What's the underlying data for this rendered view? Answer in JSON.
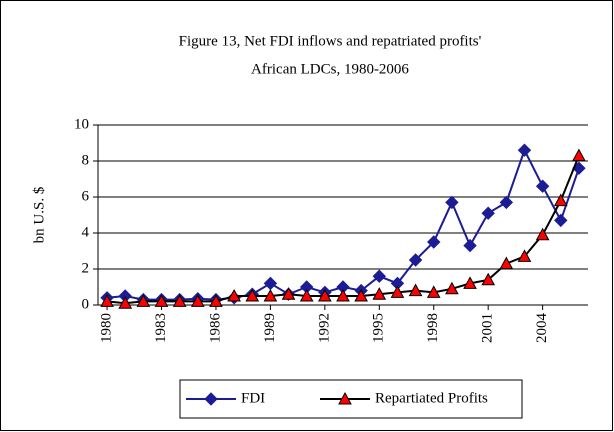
{
  "chart_data": {
    "type": "line",
    "title": [
      "Figure 13, Net FDI inflows and repatriated profits'",
      "African LDCs, 1980-2006"
    ],
    "y_label": "bn U.S. $",
    "x": [
      1980,
      1981,
      1982,
      1983,
      1984,
      1985,
      1986,
      1987,
      1988,
      1989,
      1990,
      1991,
      1992,
      1993,
      1994,
      1995,
      1996,
      1997,
      1998,
      1999,
      2000,
      2001,
      2002,
      2003,
      2004,
      2005,
      2006
    ],
    "xlim": [
      1979.5,
      2006.5
    ],
    "xticks": [
      1980,
      1983,
      1986,
      1989,
      1992,
      1995,
      1998,
      2001,
      2004
    ],
    "ylim": [
      0,
      10
    ],
    "yticks": [
      0,
      2,
      4,
      6,
      8,
      10
    ],
    "grid": true,
    "legend": "bottom",
    "series": [
      {
        "name": "FDI",
        "color": "#1c1c94",
        "marker": "diamond",
        "values": [
          0.4,
          0.5,
          0.3,
          0.3,
          0.3,
          0.35,
          0.3,
          0.4,
          0.6,
          1.2,
          0.6,
          1.0,
          0.7,
          1.0,
          0.8,
          1.6,
          1.2,
          2.5,
          3.5,
          5.7,
          3.3,
          5.1,
          5.7,
          8.6,
          6.6,
          4.7,
          7.6
        ]
      },
      {
        "name": "Repartiated Profits",
        "color": "#000000",
        "marker_color": "#ff0000",
        "marker": "triangle",
        "values": [
          0.2,
          0.1,
          0.2,
          0.2,
          0.2,
          0.2,
          0.2,
          0.5,
          0.5,
          0.5,
          0.6,
          0.5,
          0.5,
          0.5,
          0.5,
          0.6,
          0.7,
          0.8,
          0.7,
          0.9,
          1.2,
          1.4,
          2.3,
          2.7,
          3.9,
          5.8,
          8.3
        ]
      }
    ]
  }
}
